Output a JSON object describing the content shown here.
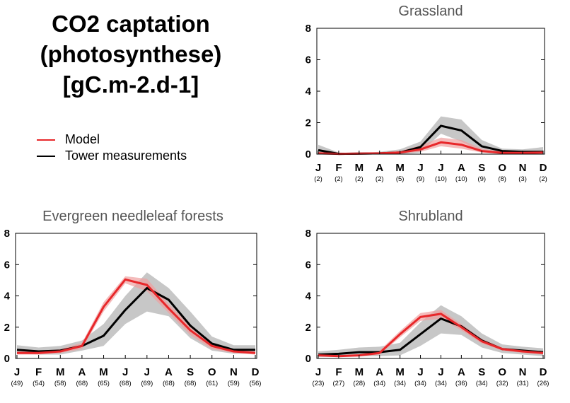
{
  "title_lines": [
    "CO2 captation",
    "(photosynthese)",
    "[gC.m-2.d-1]"
  ],
  "legend": [
    {
      "label": "Model",
      "color": "#e8272a"
    },
    {
      "label": "Tower measurements",
      "color": "#000000"
    }
  ],
  "colors": {
    "model": "#e8272a",
    "model_band": "#f0a0a0",
    "tower": "#000000",
    "tower_band": "#b4b4b4"
  },
  "chart_data": [
    {
      "type": "line",
      "title": "Grassland",
      "categories": [
        "J",
        "F",
        "M",
        "A",
        "M",
        "J",
        "J",
        "A",
        "S",
        "O",
        "N",
        "D"
      ],
      "counts": [
        "(2)",
        "(2)",
        "(2)",
        "(2)",
        "(5)",
        "(9)",
        "(10)",
        "(10)",
        "(9)",
        "(8)",
        "(3)",
        "(2)"
      ],
      "ylim": [
        0,
        8
      ],
      "yticks": [
        0,
        2,
        4,
        6,
        8
      ],
      "series": [
        {
          "name": "Model",
          "values": [
            0.05,
            0.02,
            0.03,
            0.05,
            0.1,
            0.3,
            0.75,
            0.6,
            0.2,
            0.08,
            0.08,
            0.1
          ],
          "low": [
            0.0,
            0.0,
            0.0,
            0.0,
            0.05,
            0.15,
            0.5,
            0.35,
            0.1,
            0.03,
            0.03,
            0.05
          ],
          "high": [
            0.15,
            0.05,
            0.06,
            0.1,
            0.2,
            0.55,
            1.05,
            0.9,
            0.35,
            0.15,
            0.15,
            0.2
          ]
        },
        {
          "name": "Tower measurements",
          "values": [
            0.25,
            0.02,
            0.03,
            0.05,
            0.1,
            0.45,
            1.8,
            1.5,
            0.5,
            0.2,
            0.15,
            0.15
          ],
          "low": [
            0.0,
            0.0,
            0.0,
            0.0,
            0.0,
            0.1,
            1.3,
            0.8,
            0.15,
            0.05,
            0.05,
            0.05
          ],
          "high": [
            0.6,
            0.1,
            0.08,
            0.15,
            0.3,
            0.8,
            2.4,
            2.2,
            0.9,
            0.35,
            0.3,
            0.45
          ]
        }
      ]
    },
    {
      "type": "line",
      "title": "Evergreen needleleaf forests",
      "categories": [
        "J",
        "F",
        "M",
        "A",
        "M",
        "J",
        "J",
        "A",
        "S",
        "O",
        "N",
        "D"
      ],
      "counts": [
        "(49)",
        "(54)",
        "(58)",
        "(68)",
        "(65)",
        "(68)",
        "(69)",
        "(68)",
        "(68)",
        "(61)",
        "(59)",
        "(56)"
      ],
      "ylim": [
        0,
        8
      ],
      "yticks": [
        0,
        2,
        4,
        6,
        8
      ],
      "series": [
        {
          "name": "Model",
          "values": [
            0.35,
            0.35,
            0.45,
            0.8,
            3.3,
            5.05,
            4.7,
            3.2,
            1.8,
            0.8,
            0.45,
            0.35
          ],
          "low": [
            0.25,
            0.25,
            0.35,
            0.6,
            3.0,
            4.8,
            4.3,
            2.9,
            1.5,
            0.6,
            0.35,
            0.25
          ],
          "high": [
            0.45,
            0.45,
            0.6,
            1.0,
            3.6,
            5.25,
            5.1,
            3.5,
            2.1,
            1.0,
            0.6,
            0.45
          ]
        },
        {
          "name": "Tower measurements",
          "values": [
            0.55,
            0.45,
            0.5,
            0.8,
            1.45,
            3.1,
            4.5,
            3.75,
            2.1,
            0.95,
            0.55,
            0.55
          ],
          "low": [
            0.3,
            0.25,
            0.25,
            0.5,
            0.8,
            2.2,
            3.0,
            2.7,
            1.3,
            0.5,
            0.3,
            0.3
          ],
          "high": [
            0.85,
            0.7,
            0.8,
            1.15,
            2.2,
            4.0,
            5.5,
            4.5,
            3.0,
            1.4,
            0.85,
            0.85
          ]
        }
      ]
    },
    {
      "type": "line",
      "title": "Shrubland",
      "categories": [
        "J",
        "F",
        "M",
        "A",
        "M",
        "J",
        "J",
        "A",
        "S",
        "O",
        "N",
        "D"
      ],
      "counts": [
        "(23)",
        "(27)",
        "(28)",
        "(34)",
        "(34)",
        "(34)",
        "(34)",
        "(36)",
        "(34)",
        "(32)",
        "(31)",
        "(26)"
      ],
      "ylim": [
        0,
        8
      ],
      "yticks": [
        0,
        2,
        4,
        6,
        8
      ],
      "series": [
        {
          "name": "Model",
          "values": [
            0.2,
            0.15,
            0.2,
            0.35,
            1.55,
            2.65,
            2.85,
            2.0,
            1.1,
            0.6,
            0.45,
            0.35
          ],
          "low": [
            0.12,
            0.1,
            0.12,
            0.25,
            1.35,
            2.4,
            2.55,
            1.8,
            0.95,
            0.5,
            0.35,
            0.25
          ],
          "high": [
            0.3,
            0.22,
            0.28,
            0.5,
            1.75,
            2.9,
            3.1,
            2.2,
            1.25,
            0.7,
            0.55,
            0.45
          ]
        },
        {
          "name": "Tower measurements",
          "values": [
            0.25,
            0.3,
            0.4,
            0.4,
            0.55,
            1.55,
            2.55,
            2.05,
            1.15,
            0.6,
            0.5,
            0.4
          ],
          "low": [
            0.1,
            0.1,
            0.15,
            0.15,
            0.2,
            0.8,
            1.6,
            1.5,
            0.7,
            0.35,
            0.25,
            0.15
          ],
          "high": [
            0.45,
            0.55,
            0.7,
            0.75,
            1.0,
            2.3,
            3.4,
            2.7,
            1.6,
            0.9,
            0.75,
            0.65
          ]
        }
      ]
    }
  ]
}
